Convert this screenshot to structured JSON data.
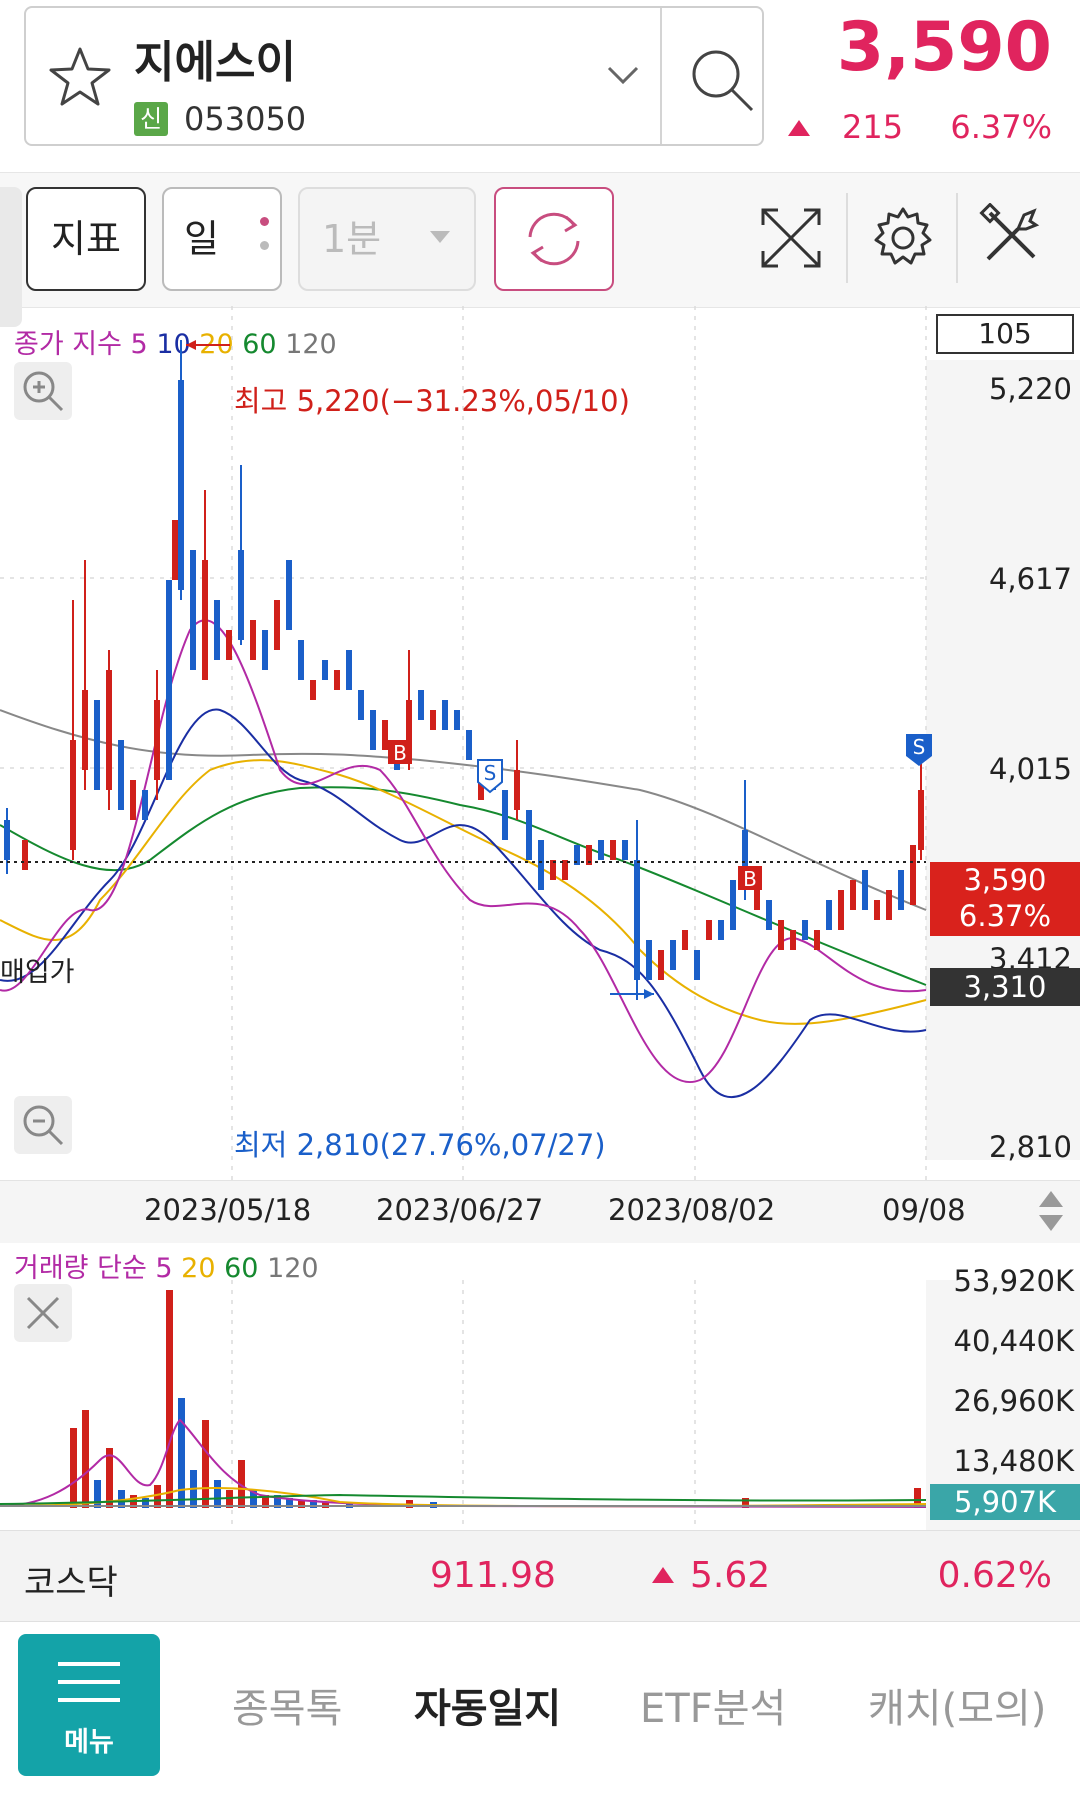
{
  "header": {
    "stock_name": "지에스이",
    "badge": "신",
    "stock_code": "053050",
    "price": "3,590",
    "change": "215",
    "change_pct": "6.37%",
    "up_color": "#e0245e"
  },
  "toolbar": {
    "indicator_label": "지표",
    "period_label": "일",
    "interval_label": "1분",
    "icons": [
      "refresh-icon",
      "fullscreen-icon",
      "gear-icon",
      "tools-icon"
    ]
  },
  "price_chart": {
    "legend_title": "종가 지수",
    "legend_ma": [
      "5",
      "10",
      "20",
      "60",
      "120"
    ],
    "period_box": "105",
    "y_ticks": [
      "5,220",
      "4,617",
      "4,015",
      "3,412",
      "2,810"
    ],
    "current_price_tag": "3,590",
    "current_pct_tag": "6.37%",
    "avg_price_tag": "3,310",
    "avg_label": "매입가",
    "high_annotation": "최고 5,220(−31.23%,05/10)",
    "low_annotation": "최저 2,810(27.76%,07/27)",
    "x_ticks": [
      "2023/05/18",
      "2023/06/27",
      "2023/08/02",
      "09/08"
    ],
    "signals": [
      "B",
      "S",
      "B",
      "S"
    ]
  },
  "volume_chart": {
    "legend_title": "거래량 단순",
    "legend_ma": [
      "5",
      "20",
      "60",
      "120"
    ],
    "y_ticks": [
      "53,920K",
      "40,440K",
      "26,960K",
      "13,480K"
    ],
    "current_tag": "5,907K"
  },
  "index_bar": {
    "name": "코스닥",
    "value": "911.98",
    "change": "5.62",
    "change_pct": "0.62%"
  },
  "nav": {
    "menu_label": "메뉴",
    "items": [
      "종목톡",
      "자동일지",
      "ETF분석",
      "캐치(모의)"
    ]
  },
  "chart_data": {
    "type": "candlestick",
    "y_range": [
      2810,
      5220
    ],
    "high": 5220,
    "low": 2810,
    "last": 3590
  }
}
